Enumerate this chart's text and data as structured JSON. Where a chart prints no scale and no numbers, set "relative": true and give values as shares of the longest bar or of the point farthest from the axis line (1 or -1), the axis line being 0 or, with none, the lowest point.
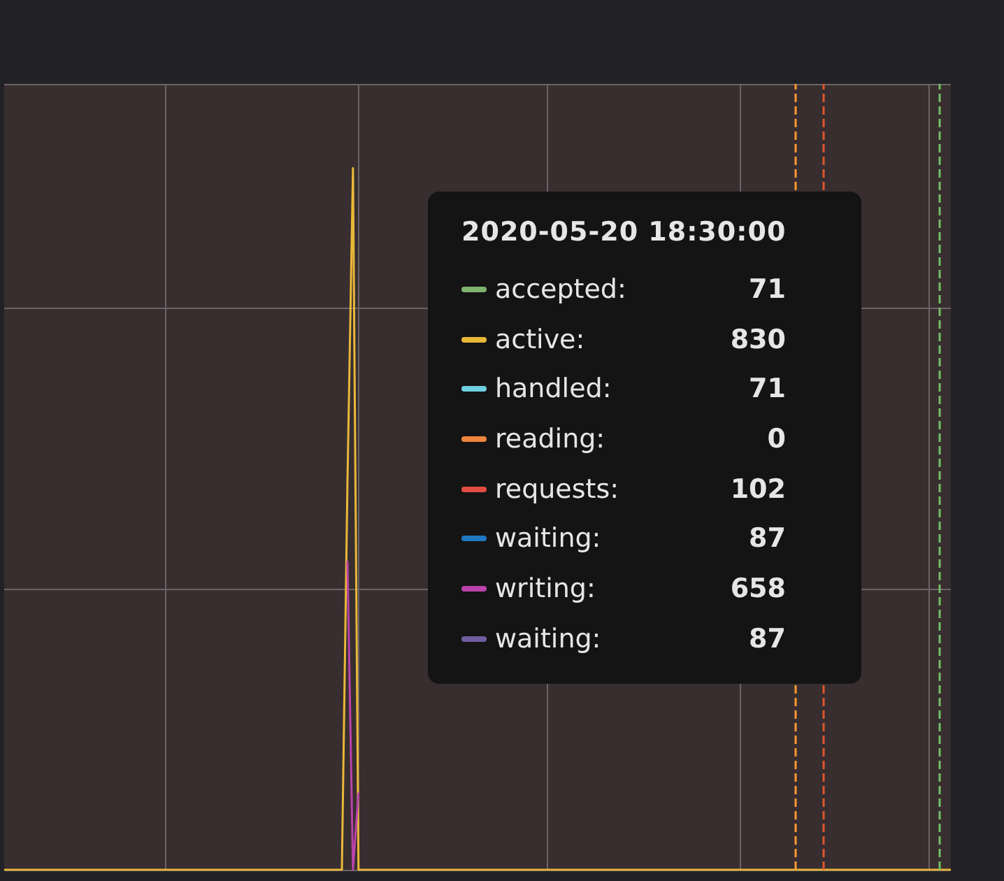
{
  "chart_data": {
    "type": "line",
    "relative": true,
    "grid": true,
    "legend": "right",
    "marker": "none",
    "line_style": "solid",
    "categories": [
      null,
      null,
      null,
      null,
      null,
      null,
      null,
      null,
      null,
      null,
      null,
      null,
      null,
      null,
      null,
      null,
      null,
      null,
      null,
      null,
      null,
      null,
      null,
      null,
      null,
      null,
      null,
      null,
      null,
      null,
      null,
      null,
      null,
      null,
      null,
      null,
      null,
      null,
      null,
      null,
      null,
      null,
      null,
      null,
      null,
      null,
      null,
      null,
      null,
      null,
      null,
      null,
      null,
      null,
      null,
      null,
      null,
      null,
      null,
      null,
      null,
      null,
      null,
      null,
      null,
      null,
      null,
      null,
      null,
      null,
      null,
      null,
      null,
      null,
      null,
      null,
      null,
      null,
      null,
      null,
      null,
      null,
      null,
      null,
      null,
      null,
      null,
      null,
      null,
      null,
      null,
      null,
      null,
      null,
      null,
      null,
      null,
      null,
      null,
      null,
      null,
      null,
      null,
      null,
      null,
      null,
      null,
      null,
      null,
      null,
      null,
      null,
      null,
      null,
      null,
      null,
      null,
      null,
      null,
      null,
      null,
      null,
      null,
      null,
      null,
      null,
      null,
      null,
      null,
      null,
      null,
      null,
      null,
      null,
      null,
      null,
      null,
      null,
      null,
      null,
      null,
      null,
      null,
      null,
      null,
      null,
      null,
      null,
      null,
      null,
      null,
      null,
      null,
      null,
      null,
      null,
      null,
      null,
      null,
      null,
      null,
      null,
      null,
      null,
      null,
      null,
      null,
      null,
      null,
      null,
      null,
      null
    ],
    "series": [
      {
        "name": "accepted:",
        "color": "#7eb26d",
        "values": [
          null,
          null,
          null,
          null,
          null,
          null,
          null,
          null,
          null,
          null,
          null,
          null,
          null,
          null,
          null,
          null,
          null,
          null,
          null,
          null,
          null,
          null,
          null,
          null,
          null,
          null,
          null,
          null,
          null,
          null,
          null,
          null,
          null,
          null,
          null,
          null,
          null,
          null,
          null,
          null,
          null,
          null,
          null,
          null,
          null,
          null,
          null,
          null,
          null,
          null,
          null,
          null,
          null,
          null,
          null,
          null,
          null,
          null,
          null,
          null,
          null,
          null,
          null,
          null,
          null,
          null,
          null,
          null,
          null,
          null,
          null,
          null,
          null,
          null,
          null,
          null,
          null,
          null,
          null,
          null,
          null,
          null,
          null,
          null,
          null,
          null,
          null,
          null,
          null,
          null,
          null,
          null,
          null,
          null,
          null,
          null,
          null,
          null,
          null,
          null,
          null,
          null,
          null,
          null,
          null,
          null,
          null,
          null,
          null,
          null,
          null,
          null,
          null,
          null,
          null,
          null,
          null,
          null,
          null,
          null,
          null,
          null,
          null,
          null,
          null,
          null,
          null,
          null,
          null,
          null,
          null,
          null,
          null,
          null,
          null,
          null,
          null,
          null,
          null,
          null,
          null,
          null,
          null,
          null,
          null,
          null,
          null,
          null,
          null,
          null,
          null,
          null,
          null,
          null,
          null,
          null,
          null,
          null,
          null,
          null,
          null,
          null,
          null,
          null,
          null,
          null,
          null,
          null,
          null,
          null,
          null,
          null
        ]
      },
      {
        "name": "active:",
        "color": "#eab839",
        "values": [
          0,
          0,
          0,
          0,
          0,
          0,
          0,
          0,
          0,
          0,
          0,
          0,
          0,
          0,
          0,
          0,
          0,
          0,
          0,
          0,
          0,
          0,
          0,
          0,
          0,
          0,
          0,
          0,
          0,
          0,
          0,
          0,
          0,
          0,
          0,
          0,
          0,
          0,
          0,
          0,
          0,
          0,
          0,
          0,
          0,
          0,
          0,
          0,
          0,
          0,
          0,
          0,
          0,
          0,
          0,
          0,
          0,
          0,
          0,
          0,
          0,
          0,
          0.55,
          1,
          0,
          0,
          0,
          0,
          0,
          0,
          0,
          0,
          0,
          0,
          0,
          0,
          0,
          0,
          0,
          0,
          0,
          0,
          0,
          0,
          0,
          0,
          0,
          0,
          0,
          0,
          0,
          0,
          0,
          0,
          0,
          0,
          0,
          0,
          0,
          0,
          0,
          0,
          0,
          0,
          0,
          0,
          0,
          0,
          0,
          0,
          0,
          0,
          0,
          0,
          0,
          0,
          0,
          0,
          0,
          0,
          0,
          0,
          0,
          0,
          0,
          0,
          0,
          0,
          0,
          0,
          0,
          0,
          0,
          0,
          0,
          0,
          0,
          0,
          0,
          0,
          0,
          0,
          0,
          0,
          0,
          0,
          0,
          0,
          0,
          0,
          0,
          0,
          0,
          0,
          0,
          0,
          0,
          0,
          0,
          0,
          0,
          0,
          0,
          0,
          0,
          0,
          0,
          0,
          0,
          0,
          0,
          0
        ]
      },
      {
        "name": "handled:",
        "color": "#6ed0e0",
        "values": [
          null,
          null,
          null,
          null,
          null,
          null,
          null,
          null,
          null,
          null,
          null,
          null,
          null,
          null,
          null,
          null,
          null,
          null,
          null,
          null,
          null,
          null,
          null,
          null,
          null,
          null,
          null,
          null,
          null,
          null,
          null,
          null,
          null,
          null,
          null,
          null,
          null,
          null,
          null,
          null,
          null,
          null,
          null,
          null,
          null,
          null,
          null,
          null,
          null,
          null,
          null,
          null,
          null,
          null,
          null,
          null,
          null,
          null,
          null,
          null,
          null,
          null,
          null,
          null,
          null,
          null,
          null,
          null,
          null,
          null,
          null,
          null,
          null,
          null,
          null,
          null,
          null,
          null,
          null,
          null,
          null,
          null,
          null,
          null,
          null,
          null,
          null,
          null,
          null,
          null,
          null,
          null,
          null,
          null,
          null,
          null,
          null,
          null,
          null,
          null,
          null,
          null,
          null,
          null,
          null,
          null,
          null,
          null,
          null,
          null,
          null,
          null,
          null,
          null,
          null,
          null,
          null,
          null,
          null,
          null,
          null,
          null,
          null,
          null,
          null,
          null,
          null,
          null,
          null,
          null,
          null,
          null,
          null,
          null,
          null,
          null,
          null,
          null,
          null,
          null,
          null,
          null,
          null,
          null,
          null,
          null,
          null,
          null,
          null,
          null,
          null,
          null,
          null,
          null,
          null,
          null,
          null,
          null,
          null,
          null,
          null,
          null,
          null,
          null,
          null,
          null,
          null,
          null,
          null,
          null,
          null,
          null
        ]
      },
      {
        "name": "reading:",
        "color": "#ef843c",
        "values": [
          null,
          null,
          null,
          null,
          null,
          null,
          null,
          null,
          null,
          null,
          null,
          null,
          null,
          null,
          null,
          null,
          null,
          null,
          null,
          null,
          null,
          null,
          null,
          null,
          null,
          null,
          null,
          null,
          null,
          null,
          null,
          null,
          null,
          null,
          null,
          null,
          null,
          null,
          null,
          null,
          null,
          null,
          null,
          null,
          null,
          null,
          null,
          null,
          null,
          null,
          null,
          null,
          null,
          null,
          null,
          null,
          null,
          null,
          null,
          null,
          null,
          null,
          null,
          null,
          null,
          null,
          null,
          null,
          null,
          null,
          null,
          null,
          null,
          null,
          null,
          null,
          null,
          null,
          null,
          null,
          null,
          null,
          null,
          null,
          null,
          null,
          null,
          null,
          null,
          null,
          null,
          null,
          null,
          null,
          null,
          null,
          null,
          null,
          null,
          null,
          null,
          null,
          null,
          null,
          null,
          null,
          null,
          null,
          null,
          null,
          null,
          null,
          null,
          null,
          null,
          null,
          null,
          null,
          null,
          null,
          null,
          null,
          null,
          null,
          null,
          null,
          null,
          null,
          null,
          null,
          null,
          null,
          null,
          null,
          null,
          null,
          null,
          null,
          null,
          null,
          null,
          null,
          null,
          null,
          null,
          null,
          null,
          null,
          null,
          null,
          null,
          null,
          null,
          null,
          null,
          null,
          null,
          null,
          null,
          null,
          null,
          null,
          null,
          null,
          null,
          null,
          null,
          null,
          null,
          null,
          null,
          null
        ]
      },
      {
        "name": "requests:",
        "color": "#e24d42",
        "values": [
          null,
          null,
          null,
          null,
          null,
          null,
          null,
          null,
          null,
          null,
          null,
          null,
          null,
          null,
          null,
          null,
          null,
          null,
          null,
          null,
          null,
          null,
          null,
          null,
          null,
          null,
          null,
          null,
          null,
          null,
          null,
          null,
          null,
          null,
          null,
          null,
          null,
          null,
          null,
          null,
          null,
          null,
          null,
          null,
          null,
          null,
          null,
          null,
          null,
          null,
          null,
          null,
          null,
          null,
          null,
          null,
          null,
          null,
          null,
          null,
          null,
          null,
          null,
          null,
          null,
          null,
          null,
          null,
          null,
          null,
          null,
          null,
          null,
          null,
          null,
          null,
          null,
          null,
          null,
          null,
          null,
          null,
          null,
          null,
          null,
          null,
          null,
          null,
          null,
          null,
          null,
          null,
          null,
          null,
          null,
          null,
          null,
          null,
          null,
          null,
          null,
          null,
          null,
          null,
          null,
          null,
          null,
          null,
          null,
          null,
          null,
          null,
          null,
          null,
          null,
          null,
          null,
          null,
          null,
          null,
          null,
          null,
          null,
          null,
          null,
          null,
          null,
          null,
          null,
          null,
          null,
          null,
          null,
          null,
          null,
          null,
          null,
          null,
          null,
          null,
          null,
          null,
          null,
          null,
          null,
          null,
          null,
          null,
          null,
          null,
          null,
          null,
          null,
          null,
          null,
          null,
          null,
          null,
          null,
          null,
          null,
          null,
          null,
          null,
          null,
          null,
          null,
          null,
          null,
          null,
          null,
          null
        ]
      },
      {
        "name": "waiting:",
        "color": "#1f78c1",
        "values": [
          null,
          null,
          null,
          null,
          null,
          null,
          null,
          null,
          null,
          null,
          null,
          null,
          null,
          null,
          null,
          null,
          null,
          null,
          null,
          null,
          null,
          null,
          null,
          null,
          null,
          null,
          null,
          null,
          null,
          null,
          null,
          null,
          null,
          null,
          null,
          null,
          null,
          null,
          null,
          null,
          null,
          null,
          null,
          null,
          null,
          null,
          null,
          null,
          null,
          null,
          null,
          null,
          null,
          null,
          null,
          null,
          null,
          null,
          null,
          null,
          null,
          null,
          null,
          null,
          null,
          null,
          null,
          null,
          null,
          null,
          null,
          null,
          null,
          null,
          null,
          null,
          null,
          null,
          null,
          null,
          null,
          null,
          null,
          null,
          null,
          null,
          null,
          null,
          null,
          null,
          null,
          null,
          null,
          null,
          null,
          null,
          null,
          null,
          null,
          null,
          null,
          null,
          null,
          null,
          null,
          null,
          null,
          null,
          null,
          null,
          null,
          null,
          null,
          null,
          null,
          null,
          null,
          null,
          null,
          null,
          null,
          null,
          null,
          null,
          null,
          null,
          null,
          null,
          null,
          null,
          null,
          null,
          null,
          null,
          null,
          null,
          null,
          null,
          null,
          null,
          null,
          null,
          null,
          null,
          null,
          null,
          null,
          null,
          null,
          null,
          null,
          null,
          null,
          null,
          null,
          null,
          null,
          null,
          null,
          null,
          null,
          null,
          null,
          null,
          null,
          null,
          null,
          null,
          null,
          null,
          null,
          null
        ]
      },
      {
        "name": "writing:",
        "color": "#ba43a9",
        "values": [
          null,
          null,
          null,
          null,
          null,
          null,
          null,
          null,
          null,
          null,
          null,
          null,
          null,
          null,
          null,
          null,
          null,
          null,
          null,
          null,
          null,
          null,
          null,
          null,
          null,
          null,
          null,
          null,
          null,
          null,
          null,
          null,
          null,
          null,
          null,
          null,
          null,
          null,
          null,
          null,
          null,
          null,
          null,
          null,
          null,
          null,
          null,
          null,
          null,
          null,
          null,
          null,
          null,
          null,
          null,
          null,
          null,
          null,
          null,
          null,
          null,
          null,
          0.44,
          0,
          0.11,
          null,
          null,
          null,
          null,
          null,
          null,
          null,
          null,
          null,
          null,
          null,
          null,
          null,
          null,
          null,
          null,
          null,
          null,
          null,
          null,
          null,
          null,
          null,
          null,
          null,
          null,
          null,
          null,
          null,
          null,
          null,
          null,
          null,
          null,
          null,
          null,
          null,
          null,
          null,
          null,
          null,
          null,
          null,
          null,
          null,
          null,
          null,
          null,
          null,
          null,
          null,
          null,
          null,
          null,
          null,
          null,
          null,
          null,
          null,
          null,
          null,
          null,
          null,
          null,
          null,
          null,
          null,
          null,
          null,
          null,
          null,
          null,
          null,
          null,
          null,
          null,
          null,
          null,
          null,
          null,
          null,
          null,
          null,
          null,
          null,
          null,
          null,
          null,
          null,
          null,
          null,
          null,
          null,
          null,
          null,
          null,
          null,
          null,
          null,
          null,
          null,
          null,
          null,
          null,
          null,
          null,
          null
        ]
      },
      {
        "name": "waiting:",
        "color": "#705da0",
        "values": [
          null,
          null,
          null,
          null,
          null,
          null,
          null,
          null,
          null,
          null,
          null,
          null,
          null,
          null,
          null,
          null,
          null,
          null,
          null,
          null,
          null,
          null,
          null,
          null,
          null,
          null,
          null,
          null,
          null,
          null,
          null,
          null,
          null,
          null,
          null,
          null,
          null,
          null,
          null,
          null,
          null,
          null,
          null,
          null,
          null,
          null,
          null,
          null,
          null,
          null,
          null,
          null,
          null,
          null,
          null,
          null,
          null,
          null,
          null,
          null,
          null,
          null,
          null,
          null,
          null,
          null,
          null,
          null,
          null,
          null,
          null,
          null,
          null,
          null,
          null,
          null,
          null,
          null,
          null,
          null,
          null,
          null,
          null,
          null,
          null,
          null,
          null,
          null,
          null,
          null,
          null,
          null,
          null,
          null,
          null,
          null,
          null,
          null,
          null,
          null,
          null,
          null,
          null,
          null,
          null,
          null,
          null,
          null,
          null,
          null,
          null,
          null,
          null,
          null,
          null,
          null,
          null,
          null,
          null,
          null,
          null,
          null,
          null,
          null,
          null,
          null,
          null,
          null,
          null,
          null,
          null,
          null,
          null,
          null,
          null,
          null,
          null,
          null,
          null,
          null,
          null,
          null,
          null,
          null,
          null,
          null,
          null,
          null,
          null,
          null,
          null,
          null,
          null,
          null,
          null,
          null,
          null,
          null,
          null,
          null,
          null,
          null,
          null,
          null,
          null,
          null,
          null,
          null,
          null,
          null,
          null,
          null
        ]
      }
    ],
    "annotations": [
      "2020-05-20 18:30:00",
      "71",
      "830",
      "71",
      "0",
      "102",
      "87",
      "658",
      "87"
    ]
  }
}
